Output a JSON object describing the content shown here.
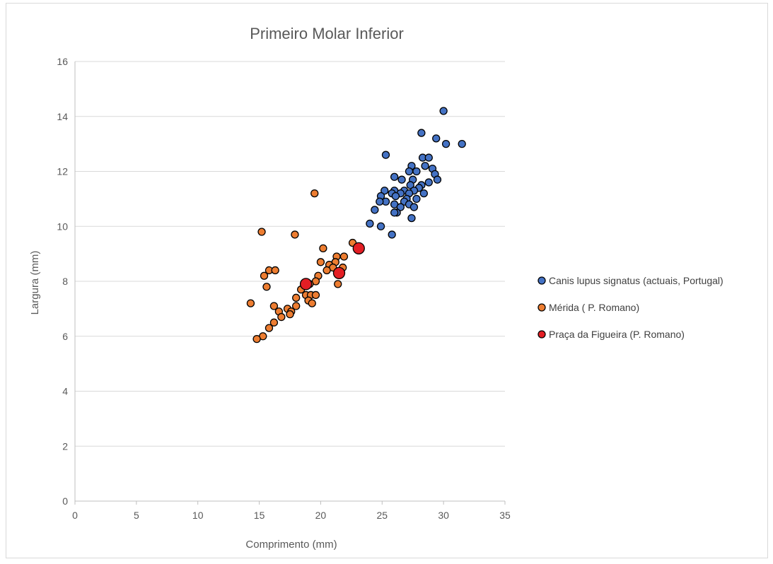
{
  "chart_data": {
    "type": "scatter",
    "title": "Primeiro Molar Inferior",
    "xlabel": "Comprimento (mm)",
    "ylabel": "Largura (mm)",
    "xlim": [
      0,
      35
    ],
    "ylim": [
      0,
      16
    ],
    "xticks": [
      0,
      5,
      10,
      15,
      20,
      25,
      30,
      35
    ],
    "yticks": [
      0,
      2,
      4,
      6,
      8,
      10,
      12,
      14,
      16
    ],
    "grid": "horizontal",
    "legend_position": "right",
    "series": [
      {
        "name": "Canis lupus signatus (actuais, Portugal)",
        "color": "#4472c4",
        "marker": "small",
        "points": [
          [
            30.0,
            14.2
          ],
          [
            28.2,
            13.4
          ],
          [
            29.4,
            13.2
          ],
          [
            30.2,
            13.0
          ],
          [
            31.5,
            13.0
          ],
          [
            25.3,
            12.6
          ],
          [
            28.3,
            12.5
          ],
          [
            28.8,
            12.5
          ],
          [
            28.5,
            12.2
          ],
          [
            27.4,
            12.2
          ],
          [
            29.1,
            12.1
          ],
          [
            27.2,
            12.0
          ],
          [
            27.8,
            12.0
          ],
          [
            29.3,
            11.9
          ],
          [
            26.0,
            11.8
          ],
          [
            26.6,
            11.7
          ],
          [
            27.5,
            11.7
          ],
          [
            29.5,
            11.7
          ],
          [
            28.8,
            11.6
          ],
          [
            27.3,
            11.5
          ],
          [
            28.2,
            11.5
          ],
          [
            28.0,
            11.4
          ],
          [
            25.2,
            11.3
          ],
          [
            26.0,
            11.3
          ],
          [
            26.8,
            11.3
          ],
          [
            27.6,
            11.3
          ],
          [
            25.8,
            11.2
          ],
          [
            26.5,
            11.2
          ],
          [
            27.2,
            11.2
          ],
          [
            28.4,
            11.2
          ],
          [
            24.9,
            11.1
          ],
          [
            26.1,
            11.1
          ],
          [
            27.0,
            11.0
          ],
          [
            27.8,
            11.0
          ],
          [
            25.3,
            10.9
          ],
          [
            26.8,
            10.9
          ],
          [
            24.8,
            10.9
          ],
          [
            27.2,
            10.8
          ],
          [
            26.0,
            10.8
          ],
          [
            26.5,
            10.7
          ],
          [
            27.6,
            10.7
          ],
          [
            24.4,
            10.6
          ],
          [
            26.2,
            10.5
          ],
          [
            26.0,
            10.5
          ],
          [
            27.4,
            10.3
          ],
          [
            24.0,
            10.1
          ],
          [
            24.9,
            10.0
          ],
          [
            25.8,
            9.7
          ]
        ]
      },
      {
        "name": "Mérida ( P. Romano)",
        "color": "#ed7d31",
        "marker": "small",
        "points": [
          [
            19.5,
            11.2
          ],
          [
            15.2,
            9.8
          ],
          [
            17.9,
            9.7
          ],
          [
            22.6,
            9.4
          ],
          [
            20.2,
            9.2
          ],
          [
            21.3,
            8.9
          ],
          [
            21.9,
            8.9
          ],
          [
            20.0,
            8.7
          ],
          [
            21.2,
            8.7
          ],
          [
            20.7,
            8.6
          ],
          [
            21.0,
            8.5
          ],
          [
            21.8,
            8.5
          ],
          [
            15.8,
            8.4
          ],
          [
            16.3,
            8.4
          ],
          [
            20.5,
            8.4
          ],
          [
            19.8,
            8.2
          ],
          [
            15.4,
            8.2
          ],
          [
            19.6,
            8.0
          ],
          [
            19.1,
            7.9
          ],
          [
            21.4,
            7.9
          ],
          [
            15.6,
            7.8
          ],
          [
            18.4,
            7.7
          ],
          [
            18.8,
            7.5
          ],
          [
            19.2,
            7.5
          ],
          [
            19.6,
            7.5
          ],
          [
            18.0,
            7.4
          ],
          [
            19.0,
            7.3
          ],
          [
            19.3,
            7.2
          ],
          [
            14.3,
            7.2
          ],
          [
            16.2,
            7.1
          ],
          [
            18.0,
            7.1
          ],
          [
            17.3,
            7.0
          ],
          [
            16.6,
            6.9
          ],
          [
            17.6,
            6.9
          ],
          [
            17.5,
            6.8
          ],
          [
            16.8,
            6.7
          ],
          [
            16.2,
            6.5
          ],
          [
            15.8,
            6.3
          ],
          [
            15.3,
            6.0
          ],
          [
            14.8,
            5.9
          ]
        ]
      },
      {
        "name": "Praça da Figueira (P. Romano)",
        "color": "#e31e24",
        "marker": "large",
        "points": [
          [
            23.1,
            9.2
          ],
          [
            21.5,
            8.3
          ],
          [
            18.8,
            7.9
          ]
        ]
      }
    ]
  }
}
